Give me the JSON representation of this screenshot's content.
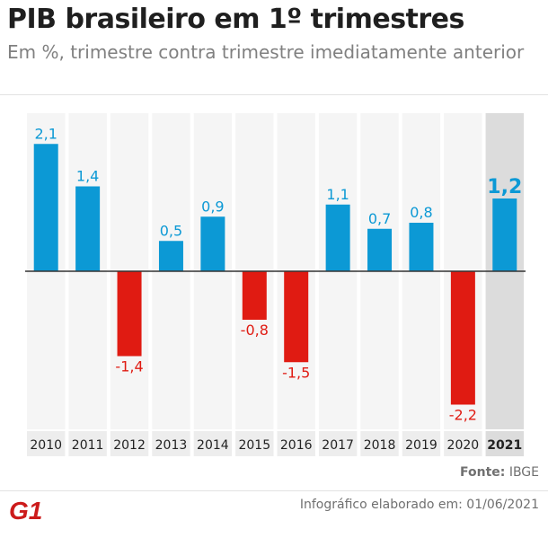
{
  "header": {
    "title": "PIB brasileiro em 1º trimestres",
    "subtitle": "Em %, trimestre contra trimestre imediatamente anterior"
  },
  "chart_data": {
    "type": "bar",
    "categories": [
      "2010",
      "2011",
      "2012",
      "2013",
      "2014",
      "2015",
      "2016",
      "2017",
      "2018",
      "2019",
      "2020",
      "2021"
    ],
    "values": [
      2.1,
      1.4,
      -1.4,
      0.5,
      0.9,
      -0.8,
      -1.5,
      1.1,
      0.7,
      0.8,
      -2.2,
      1.2
    ],
    "value_labels": [
      "2,1",
      "1,4",
      "-1,4",
      "0,5",
      "0,9",
      "-0,8",
      "-1,5",
      "1,1",
      "0,7",
      "0,8",
      "-2,2",
      "1,2"
    ],
    "highlight_category": "2021",
    "ylim": [
      -2.55,
      2.6
    ],
    "grid": false,
    "colors": {
      "positive": "#0c99d5",
      "negative": "#e01b12",
      "column_background": "#f5f5f5",
      "highlight_background": "#dcdcdc",
      "baseline": "#333333"
    }
  },
  "footer": {
    "source_label": "Fonte:",
    "source_value": "IBGE",
    "credit": "Infográfico elaborado em: 01/06/2021",
    "logo_text": "G1",
    "logo_color": "#cc1b1b"
  }
}
